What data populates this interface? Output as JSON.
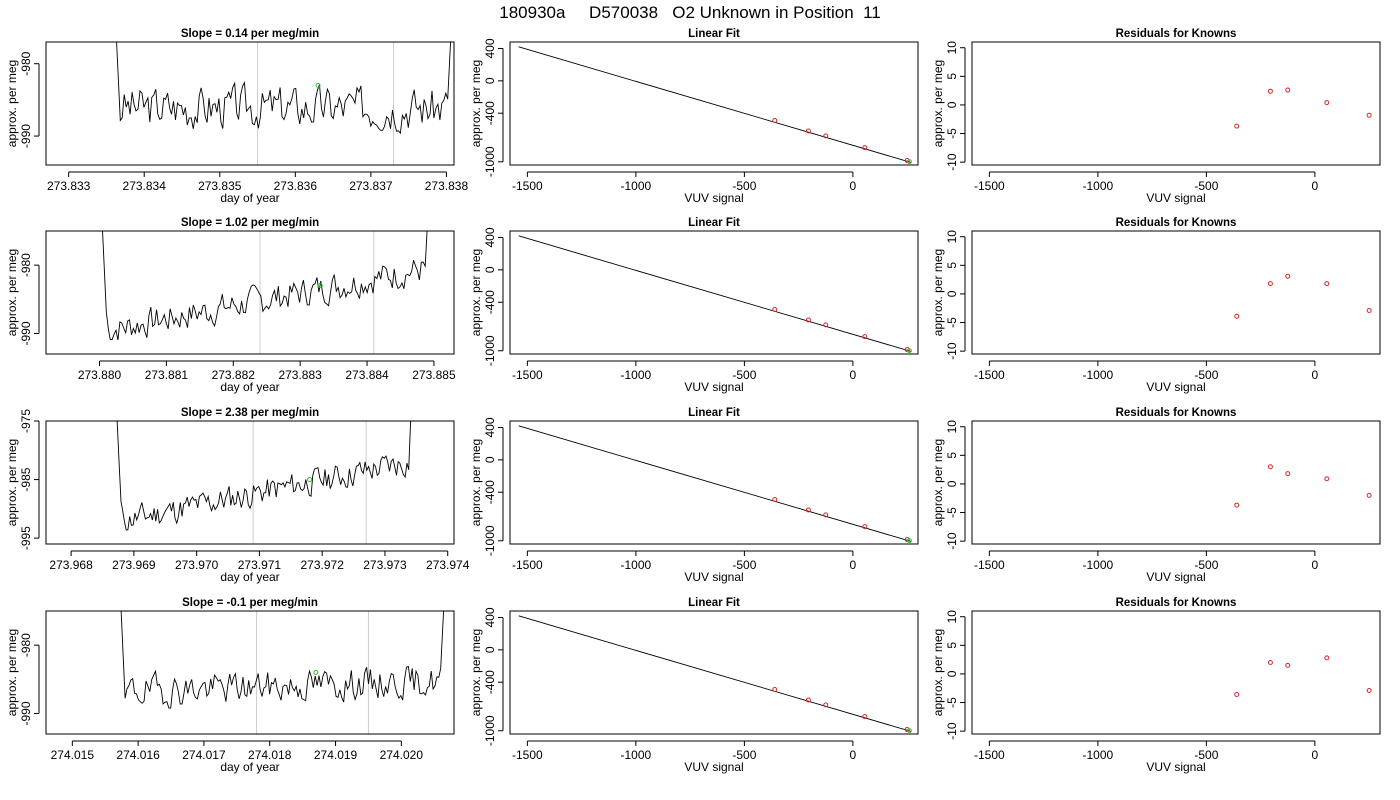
{
  "page": {
    "title": "180930a     D570038   O2 Unknown in Position  11"
  },
  "colors": {
    "trace": "#000000",
    "marker_known": "#d62728",
    "marker_unknown": "#22cc22",
    "vline": "#cccccc"
  },
  "chart_data": [
    {
      "type": "line",
      "title": "Slope =  0.14  per meg/min",
      "xlabel": "day of year",
      "ylabel": "approx. per meg",
      "xlim": [
        273.8327,
        273.8381
      ],
      "ylim": [
        -994,
        -977
      ],
      "xticks": [
        "273.833",
        "273.834",
        "273.835",
        "273.836",
        "273.837",
        "273.838"
      ],
      "yticks": [
        "-980",
        "-990"
      ],
      "ytick_values": [
        -980,
        -990
      ],
      "window": [
        273.8335,
        273.8382
      ],
      "vlines": [
        273.8355,
        273.8373
      ],
      "baseline": -986,
      "trend": 0.0,
      "noise_amp": 4.0,
      "seed": 3,
      "marker": {
        "x": 273.8363,
        "y": -983
      }
    },
    {
      "type": "line",
      "title": "Slope =  1.02  per meg/min",
      "xlabel": "day of year",
      "ylabel": "approx. per meg",
      "xlim": [
        273.8792,
        273.8853
      ],
      "ylim": [
        -993,
        -975
      ],
      "xticks": [
        "273.880",
        "273.881",
        "273.882",
        "273.883",
        "273.884",
        "273.885"
      ],
      "yticks": [
        "-980",
        "-990"
      ],
      "ytick_values": [
        -980,
        -990
      ],
      "window": [
        273.8799,
        273.8851
      ],
      "vlines": [
        273.8824,
        273.8841
      ],
      "baseline": -985,
      "trend": 9.0,
      "noise_amp": 3.0,
      "seed": 7,
      "marker": {
        "x": 273.8833,
        "y": -983
      }
    },
    {
      "type": "line",
      "title": "Slope =  2.38  per meg/min",
      "xlabel": "day of year",
      "ylabel": "approx. per meg",
      "xlim": [
        273.9676,
        273.9741
      ],
      "ylim": [
        -996,
        -975
      ],
      "xticks": [
        "273.968",
        "273.969",
        "273.970",
        "273.971",
        "273.972",
        "273.973",
        "273.974"
      ],
      "yticks": [
        "-975",
        "-985",
        "-995"
      ],
      "ytick_values": [
        -975,
        -985,
        -995
      ],
      "window": [
        273.9686,
        273.9736
      ],
      "vlines": [
        273.9709,
        273.9727
      ],
      "baseline": -987,
      "trend": 10.0,
      "noise_amp": 3.2,
      "seed": 11,
      "marker": {
        "x": 273.9718,
        "y": -985
      }
    },
    {
      "type": "line",
      "title": "Slope =  -0.1  per meg/min",
      "xlabel": "day of year",
      "ylabel": "approx. per meg",
      "xlim": [
        274.0146,
        274.0208
      ],
      "ylim": [
        -993,
        -975
      ],
      "xticks": [
        "274.015",
        "274.016",
        "274.017",
        "274.018",
        "274.019",
        "274.020"
      ],
      "yticks": [
        "-980",
        "-990"
      ],
      "ytick_values": [
        -980,
        -990
      ],
      "window": [
        274.0156,
        274.0208
      ],
      "vlines": [
        274.0178,
        274.0195
      ],
      "baseline": -986,
      "trend": 1.5,
      "noise_amp": 3.2,
      "seed": 19,
      "marker": {
        "x": 274.0187,
        "y": -984
      }
    },
    {
      "type": "scatter",
      "title": "Linear Fit",
      "xlabel": "VUV signal",
      "ylabel": "approx. per meg",
      "xlim": [
        -1580,
        300
      ],
      "ylim": [
        -1040,
        480
      ],
      "xticks": [
        -1500,
        -1000,
        -500,
        0
      ],
      "yticks": [
        400,
        0,
        -400,
        -1000
      ],
      "line": {
        "x": [
          -1540,
          270
        ],
        "y": [
          420,
          -1010
        ]
      },
      "points": [
        {
          "x": -360,
          "y": -490
        },
        {
          "x": -205,
          "y": -620
        },
        {
          "x": -125,
          "y": -680
        },
        {
          "x": 55,
          "y": -825
        },
        {
          "x": 250,
          "y": -985
        }
      ],
      "unknown": {
        "x": 260,
        "y": -998
      }
    },
    {
      "type": "scatter",
      "title": "Residuals for Knowns",
      "xlabel": "VUV signal",
      "ylabel": "approx. per meg",
      "xlim": [
        -1580,
        300
      ],
      "ylim": [
        -10.5,
        11
      ],
      "xticks": [
        -1500,
        -1000,
        -500,
        0
      ],
      "yticks": [
        10,
        5,
        0,
        -5,
        -10
      ],
      "panels": [
        {
          "points": [
            {
              "x": -360,
              "y": -3.7
            },
            {
              "x": -205,
              "y": 2.4
            },
            {
              "x": -125,
              "y": 2.6
            },
            {
              "x": 55,
              "y": 0.4
            },
            {
              "x": 250,
              "y": -1.8
            }
          ]
        },
        {
          "points": [
            {
              "x": -360,
              "y": -3.9
            },
            {
              "x": -205,
              "y": 1.8
            },
            {
              "x": -125,
              "y": 3.1
            },
            {
              "x": 55,
              "y": 1.8
            },
            {
              "x": 250,
              "y": -2.9
            }
          ]
        },
        {
          "points": [
            {
              "x": -360,
              "y": -3.7
            },
            {
              "x": -205,
              "y": 3.0
            },
            {
              "x": -125,
              "y": 1.8
            },
            {
              "x": 55,
              "y": 0.9
            },
            {
              "x": 250,
              "y": -2.0
            }
          ]
        },
        {
          "points": [
            {
              "x": -360,
              "y": -3.6
            },
            {
              "x": -205,
              "y": 2.0
            },
            {
              "x": -125,
              "y": 1.5
            },
            {
              "x": 55,
              "y": 2.8
            },
            {
              "x": 250,
              "y": -2.9
            }
          ]
        }
      ]
    }
  ]
}
